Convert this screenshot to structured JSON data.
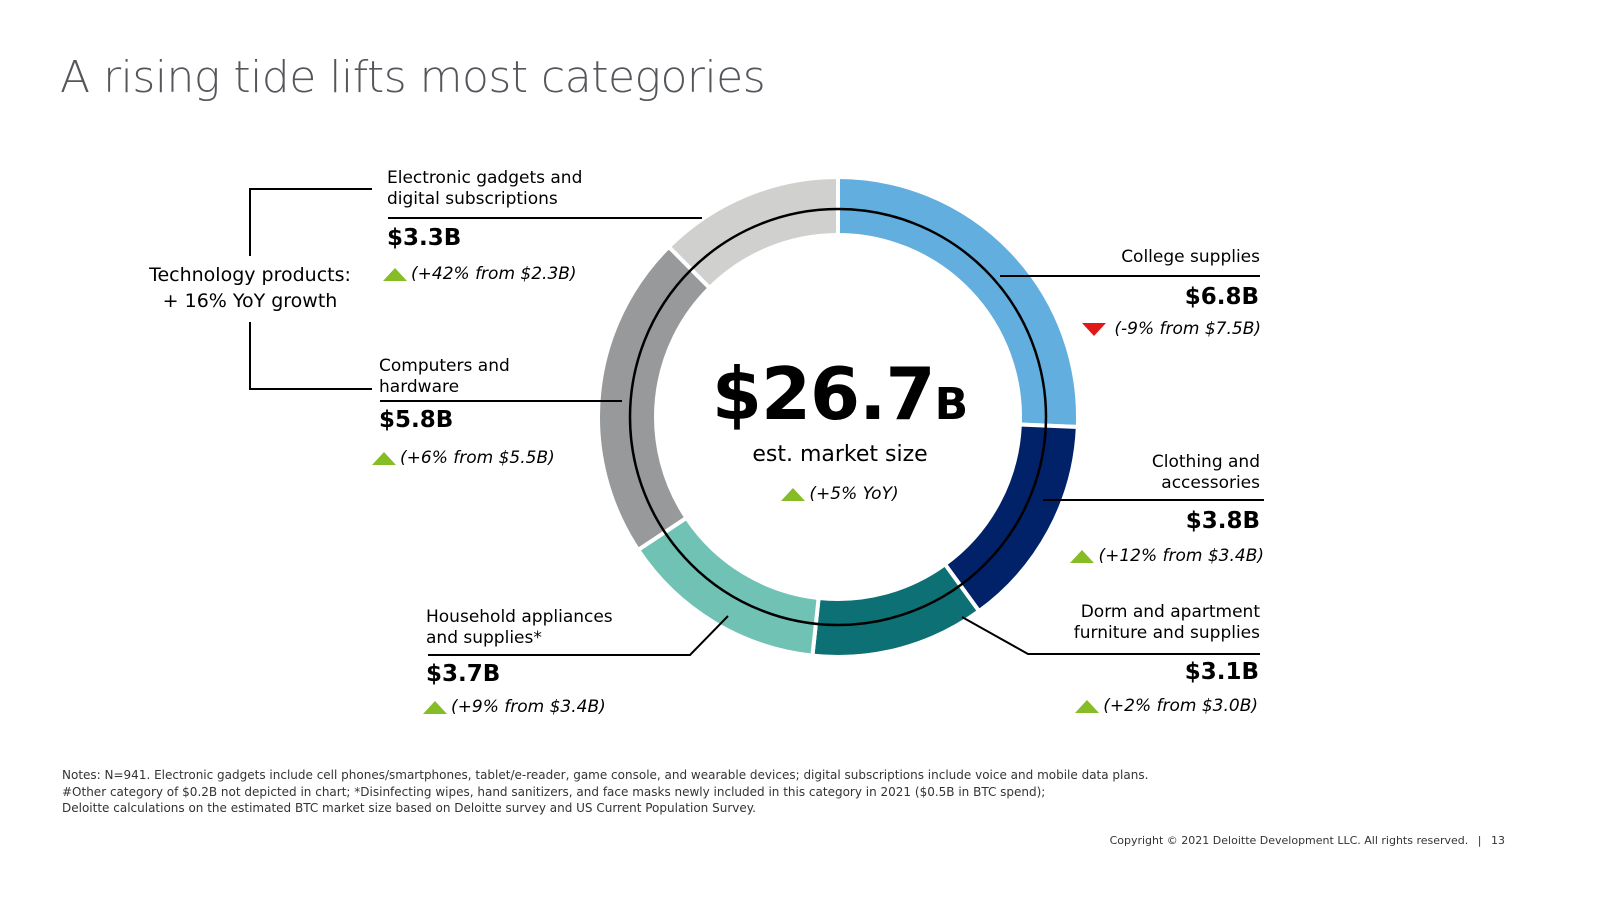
{
  "title": "A rising tide lifts most categories",
  "center": {
    "value": "$26.7",
    "unit": "B",
    "label": "est. market size",
    "change": "(+5% YoY)"
  },
  "group": {
    "label_line1": "Technology products:",
    "label_line2": "+ 16% YoY growth"
  },
  "colors": {
    "up": "#86bc25",
    "down": "#e01818",
    "title": "#53565a"
  },
  "chart_data": {
    "type": "pie",
    "title": "A rising tide lifts most categories",
    "total": 26.7,
    "unit": "$B",
    "series": [
      {
        "name": "College supplies",
        "label_line1": "College supplies",
        "label_line2": "",
        "value": 6.8,
        "value_label": "$6.8B",
        "change": "(-9% from $7.5B)",
        "direction": "down",
        "color": "#62aedf"
      },
      {
        "name": "Clothing and accessories",
        "label_line1": "Clothing and",
        "label_line2": "accessories",
        "value": 3.8,
        "value_label": "$3.8B",
        "change": "(+12% from $3.4B)",
        "direction": "up",
        "color": "#012169"
      },
      {
        "name": "Dorm and apartment furniture and supplies",
        "label_line1": "Dorm and apartment",
        "label_line2": "furniture and supplies",
        "value": 3.1,
        "value_label": "$3.1B",
        "change": "(+2% from $3.0B)",
        "direction": "up",
        "color": "#0d7075"
      },
      {
        "name": "Household appliances and supplies*",
        "label_line1": "Household appliances",
        "label_line2": "and supplies*",
        "value": 3.7,
        "value_label": "$3.7B",
        "change": "(+9% from $3.4B)",
        "direction": "up",
        "color": "#6fc2b4"
      },
      {
        "name": "Computers and hardware",
        "label_line1": "Computers and",
        "label_line2": "hardware",
        "value": 5.8,
        "value_label": "$5.8B",
        "change": "(+6% from $5.5B)",
        "direction": "up",
        "color": "#97999b"
      },
      {
        "name": "Electronic gadgets and digital subscriptions",
        "label_line1": "Electronic gadgets and",
        "label_line2": "digital subscriptions",
        "value": 3.3,
        "value_label": "$3.3B",
        "change": "(+42% from $2.3B)",
        "direction": "up",
        "color": "#d0d0ce"
      }
    ]
  },
  "notes": {
    "line1": "Notes: N=941. Electronic gadgets include cell phones/smartphones, tablet/e-reader, game console, and wearable devices; digital subscriptions include voice and mobile data plans.",
    "line2": "#Other category of $0.2B not depicted in chart; *Disinfecting wipes, hand sanitizers, and face masks newly included in this category in 2021 ($0.5B in BTC spend);",
    "line3": "Deloitte calculations on the estimated BTC market size based on Deloitte survey and US Current Population Survey."
  },
  "footer": {
    "copyright": "Copyright © 2021 Deloitte Development LLC. All rights reserved.",
    "separator": "|",
    "page": "13"
  }
}
